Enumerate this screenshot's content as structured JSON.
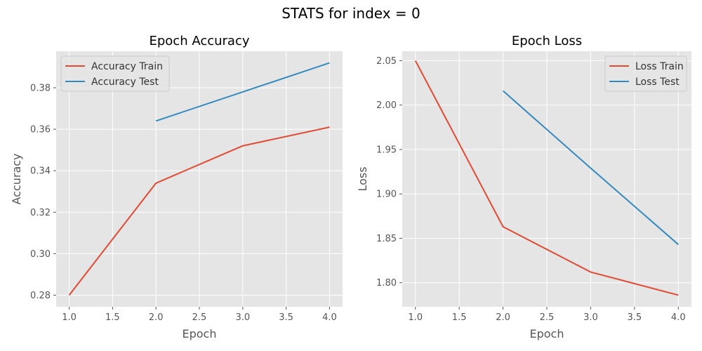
{
  "figure_title": "STATS for index = 0",
  "colors": {
    "train": "#E24A33",
    "test": "#348ABD",
    "panel_bg": "#E5E5E5",
    "grid": "#FFFFFF"
  },
  "chart_data": [
    {
      "type": "line",
      "title": "Epoch Accuracy",
      "xlabel": "Epoch",
      "ylabel": "Accuracy",
      "xlim": [
        0.85,
        4.15
      ],
      "ylim": [
        0.2744,
        0.3976
      ],
      "xticks": [
        1.0,
        1.5,
        2.0,
        2.5,
        3.0,
        3.5,
        4.0
      ],
      "xtick_labels": [
        "1.0",
        "1.5",
        "2.0",
        "2.5",
        "3.0",
        "3.5",
        "4.0"
      ],
      "yticks": [
        0.28,
        0.3,
        0.32,
        0.34,
        0.36,
        0.38
      ],
      "ytick_labels": [
        "0.28",
        "0.30",
        "0.32",
        "0.34",
        "0.36",
        "0.38"
      ],
      "legend_position": "top-left",
      "series": [
        {
          "name": "Accuracy Train",
          "color_key": "train",
          "x": [
            1,
            2,
            3,
            4
          ],
          "y": [
            0.28,
            0.334,
            0.352,
            0.361
          ]
        },
        {
          "name": "Accuracy Test",
          "color_key": "test",
          "x": [
            2,
            3,
            4
          ],
          "y": [
            0.364,
            0.378,
            0.392
          ]
        }
      ]
    },
    {
      "type": "line",
      "title": "Epoch Loss",
      "xlabel": "Epoch",
      "ylabel": "Loss",
      "xlim": [
        0.85,
        4.15
      ],
      "ylim": [
        1.7729,
        2.0606
      ],
      "xticks": [
        1.0,
        1.5,
        2.0,
        2.5,
        3.0,
        3.5,
        4.0
      ],
      "xtick_labels": [
        "1.0",
        "1.5",
        "2.0",
        "2.5",
        "3.0",
        "3.5",
        "4.0"
      ],
      "yticks": [
        1.8,
        1.85,
        1.9,
        1.95,
        2.0,
        2.05
      ],
      "ytick_labels": [
        "1.80",
        "1.85",
        "1.90",
        "1.95",
        "2.00",
        "2.05"
      ],
      "legend_position": "top-right",
      "series": [
        {
          "name": "Loss Train",
          "color_key": "train",
          "x": [
            1,
            2,
            3,
            4
          ],
          "y": [
            2.05,
            1.863,
            1.812,
            1.786
          ]
        },
        {
          "name": "Loss Test",
          "color_key": "test",
          "x": [
            2,
            3,
            4
          ],
          "y": [
            2.016,
            1.929,
            1.843
          ]
        }
      ]
    }
  ]
}
